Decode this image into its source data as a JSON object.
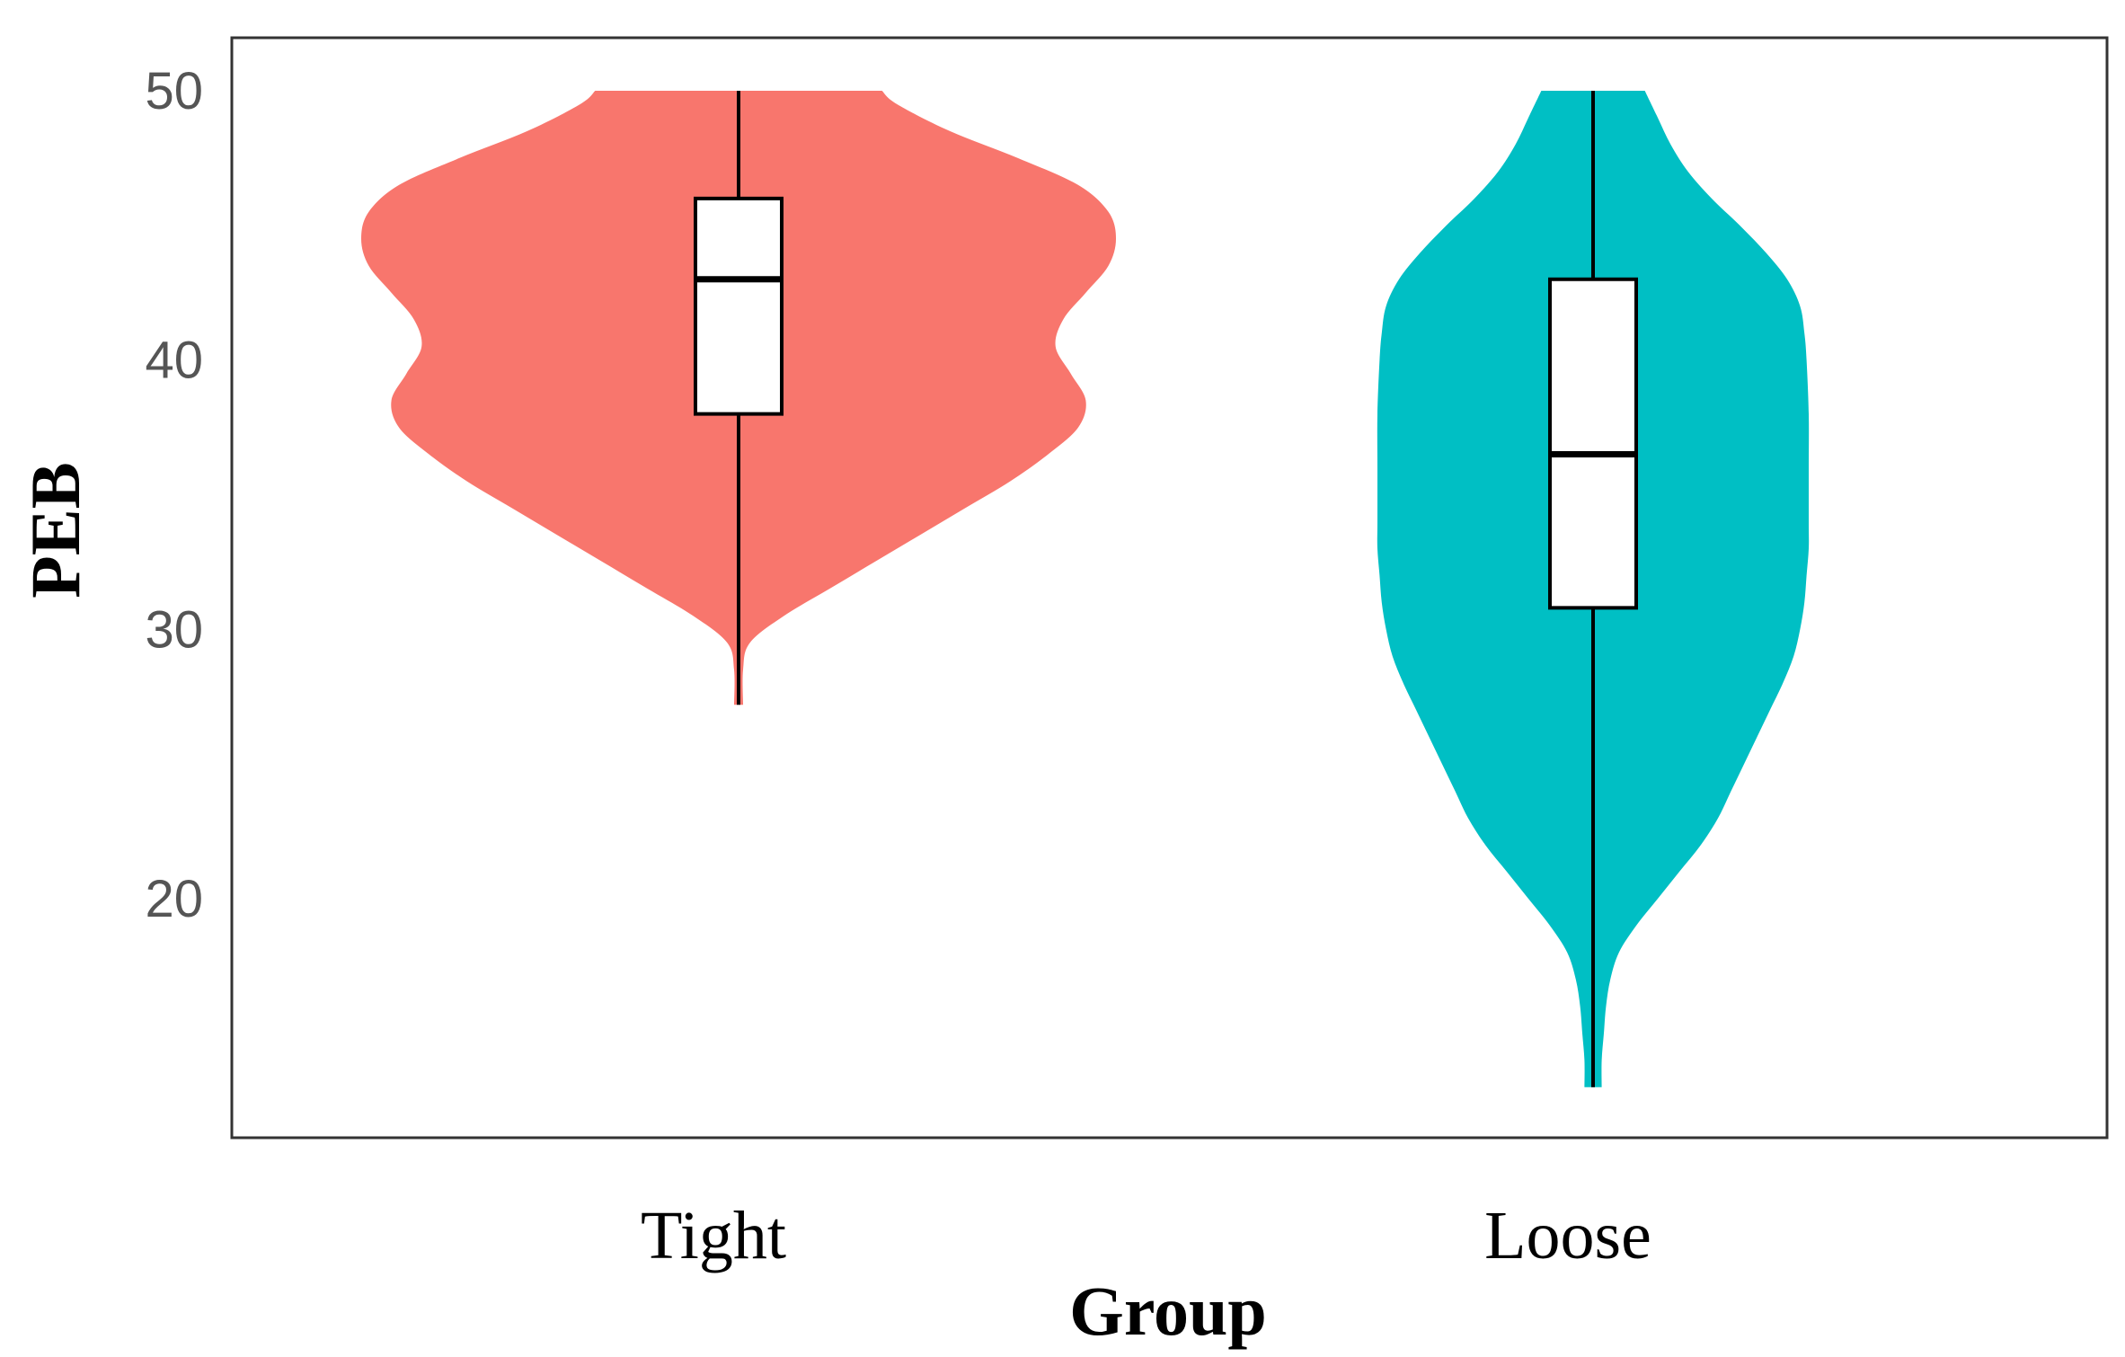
{
  "chart_data": {
    "type": "violin",
    "title": "",
    "xlabel": "Group",
    "ylabel": "PEB",
    "ylim": [
      11.5,
      51
    ],
    "yticks": [
      20,
      30,
      40,
      50
    ],
    "grid": false,
    "legend": "none",
    "categories": [
      "Tight",
      "Loose"
    ],
    "series": [
      {
        "color": "#f8766d",
        "box": {
          "min": 27.2,
          "q1": 38.0,
          "median": 43.0,
          "q3": 46.0,
          "max": 50.0
        },
        "density": [
          [
            27.2,
            0.012
          ],
          [
            28.5,
            0.012
          ],
          [
            29.5,
            0.03
          ],
          [
            30.5,
            0.12
          ],
          [
            31.5,
            0.24
          ],
          [
            32.5,
            0.36
          ],
          [
            33.5,
            0.48
          ],
          [
            34.5,
            0.6
          ],
          [
            35.5,
            0.72
          ],
          [
            36.5,
            0.82
          ],
          [
            37.5,
            0.9
          ],
          [
            38.5,
            0.92
          ],
          [
            39.5,
            0.88
          ],
          [
            40.5,
            0.84
          ],
          [
            41.5,
            0.86
          ],
          [
            42.5,
            0.92
          ],
          [
            43.5,
            0.98
          ],
          [
            44.5,
            1.0
          ],
          [
            45.5,
            0.98
          ],
          [
            46.5,
            0.9
          ],
          [
            47.5,
            0.74
          ],
          [
            48.5,
            0.56
          ],
          [
            49.5,
            0.42
          ],
          [
            50.0,
            0.38
          ]
        ]
      },
      {
        "color": "#00bfc4",
        "box": {
          "min": 13.0,
          "q1": 30.8,
          "median": 36.5,
          "q3": 43.0,
          "max": 50.0
        },
        "density": [
          [
            13.0,
            0.04
          ],
          [
            14.0,
            0.04
          ],
          [
            15.0,
            0.05
          ],
          [
            16.0,
            0.06
          ],
          [
            17.0,
            0.08
          ],
          [
            18.0,
            0.12
          ],
          [
            19.0,
            0.2
          ],
          [
            20.0,
            0.3
          ],
          [
            21.0,
            0.4
          ],
          [
            22.0,
            0.5
          ],
          [
            23.0,
            0.58
          ],
          [
            24.0,
            0.64
          ],
          [
            25.0,
            0.7
          ],
          [
            26.0,
            0.76
          ],
          [
            27.0,
            0.82
          ],
          [
            28.0,
            0.88
          ],
          [
            29.0,
            0.93
          ],
          [
            30.0,
            0.96
          ],
          [
            31.0,
            0.98
          ],
          [
            32.0,
            0.99
          ],
          [
            33.0,
            1.0
          ],
          [
            34.0,
            1.0
          ],
          [
            36.0,
            1.0
          ],
          [
            38.0,
            1.0
          ],
          [
            40.0,
            0.99
          ],
          [
            41.0,
            0.98
          ],
          [
            42.0,
            0.96
          ],
          [
            43.0,
            0.9
          ],
          [
            44.0,
            0.8
          ],
          [
            45.0,
            0.68
          ],
          [
            46.0,
            0.55
          ],
          [
            47.0,
            0.44
          ],
          [
            48.0,
            0.36
          ],
          [
            49.0,
            0.3
          ],
          [
            50.0,
            0.24
          ]
        ]
      }
    ]
  }
}
